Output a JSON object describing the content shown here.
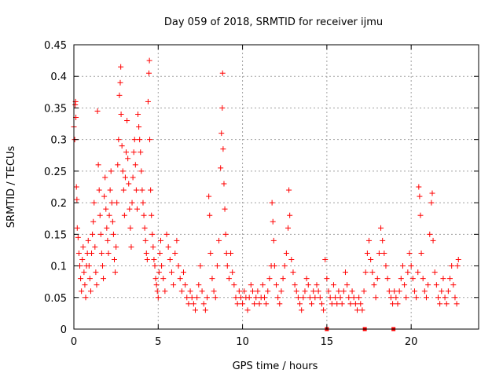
{
  "chart_data": {
    "type": "scatter",
    "title": "Day 059 of 2018, SRMTID for receiver ijmu",
    "xlabel": "GPS time / hours",
    "ylabel": "SRMTID / TECUs",
    "xlim": [
      0,
      24
    ],
    "ylim": [
      0,
      0.45
    ],
    "x_ticks": [
      0,
      5,
      10,
      15,
      20
    ],
    "y_ticks": [
      0,
      0.05,
      0.1,
      0.15,
      0.2,
      0.25,
      0.3,
      0.35,
      0.4,
      0.45
    ],
    "grid": true,
    "marker": "+",
    "series_color": "#ff0000",
    "points": [
      [
        0.0,
        0.32
      ],
      [
        0.05,
        0.3
      ],
      [
        0.08,
        0.355
      ],
      [
        0.1,
        0.36
      ],
      [
        0.12,
        0.335
      ],
      [
        0.15,
        0.225
      ],
      [
        0.18,
        0.205
      ],
      [
        0.2,
        0.16
      ],
      [
        0.25,
        0.145
      ],
      [
        0.3,
        0.12
      ],
      [
        0.35,
        0.1
      ],
      [
        0.4,
        0.08
      ],
      [
        0.45,
        0.06
      ],
      [
        0.5,
        0.11
      ],
      [
        0.55,
        0.13
      ],
      [
        0.6,
        0.09
      ],
      [
        0.65,
        0.07
      ],
      [
        0.7,
        0.05
      ],
      [
        0.75,
        0.1
      ],
      [
        0.8,
        0.12
      ],
      [
        0.85,
        0.14
      ],
      [
        0.9,
        0.1
      ],
      [
        0.95,
        0.08
      ],
      [
        1.0,
        0.06
      ],
      [
        1.05,
        0.12
      ],
      [
        1.1,
        0.15
      ],
      [
        1.15,
        0.17
      ],
      [
        1.2,
        0.2
      ],
      [
        1.25,
        0.13
      ],
      [
        1.3,
        0.09
      ],
      [
        1.35,
        0.07
      ],
      [
        1.4,
        0.345
      ],
      [
        1.45,
        0.26
      ],
      [
        1.5,
        0.22
      ],
      [
        1.55,
        0.18
      ],
      [
        1.6,
        0.15
      ],
      [
        1.65,
        0.12
      ],
      [
        1.7,
        0.1
      ],
      [
        1.75,
        0.08
      ],
      [
        1.8,
        0.21
      ],
      [
        1.85,
        0.24
      ],
      [
        1.9,
        0.19
      ],
      [
        1.95,
        0.16
      ],
      [
        2.0,
        0.14
      ],
      [
        2.05,
        0.12
      ],
      [
        2.1,
        0.18
      ],
      [
        2.15,
        0.22
      ],
      [
        2.2,
        0.25
      ],
      [
        2.25,
        0.2
      ],
      [
        2.3,
        0.17
      ],
      [
        2.35,
        0.15
      ],
      [
        2.4,
        0.11
      ],
      [
        2.45,
        0.09
      ],
      [
        2.5,
        0.13
      ],
      [
        2.55,
        0.2
      ],
      [
        2.6,
        0.26
      ],
      [
        2.65,
        0.3
      ],
      [
        2.7,
        0.37
      ],
      [
        2.75,
        0.39
      ],
      [
        2.78,
        0.415
      ],
      [
        2.8,
        0.34
      ],
      [
        2.85,
        0.29
      ],
      [
        2.9,
        0.25
      ],
      [
        2.95,
        0.22
      ],
      [
        3.0,
        0.18
      ],
      [
        3.05,
        0.24
      ],
      [
        3.1,
        0.28
      ],
      [
        3.15,
        0.33
      ],
      [
        3.2,
        0.27
      ],
      [
        3.25,
        0.23
      ],
      [
        3.3,
        0.19
      ],
      [
        3.35,
        0.16
      ],
      [
        3.4,
        0.13
      ],
      [
        3.45,
        0.2
      ],
      [
        3.5,
        0.24
      ],
      [
        3.55,
        0.28
      ],
      [
        3.6,
        0.3
      ],
      [
        3.65,
        0.26
      ],
      [
        3.7,
        0.22
      ],
      [
        3.75,
        0.19
      ],
      [
        3.8,
        0.34
      ],
      [
        3.85,
        0.32
      ],
      [
        3.9,
        0.3
      ],
      [
        3.95,
        0.28
      ],
      [
        4.0,
        0.25
      ],
      [
        4.05,
        0.22
      ],
      [
        4.1,
        0.2
      ],
      [
        4.15,
        0.18
      ],
      [
        4.2,
        0.16
      ],
      [
        4.25,
        0.14
      ],
      [
        4.3,
        0.12
      ],
      [
        4.35,
        0.11
      ],
      [
        4.4,
        0.36
      ],
      [
        4.45,
        0.405
      ],
      [
        4.48,
        0.425
      ],
      [
        4.5,
        0.3
      ],
      [
        4.55,
        0.22
      ],
      [
        4.6,
        0.18
      ],
      [
        4.65,
        0.15
      ],
      [
        4.7,
        0.13
      ],
      [
        4.75,
        0.11
      ],
      [
        4.8,
        0.1
      ],
      [
        4.85,
        0.08
      ],
      [
        4.9,
        0.07
      ],
      [
        4.95,
        0.06
      ],
      [
        5.0,
        0.05
      ],
      [
        5.05,
        0.09
      ],
      [
        5.1,
        0.12
      ],
      [
        5.15,
        0.14
      ],
      [
        5.2,
        0.1
      ],
      [
        5.3,
        0.08
      ],
      [
        5.4,
        0.06
      ],
      [
        5.5,
        0.15
      ],
      [
        5.6,
        0.13
      ],
      [
        5.7,
        0.11
      ],
      [
        5.8,
        0.09
      ],
      [
        5.9,
        0.07
      ],
      [
        6.0,
        0.12
      ],
      [
        6.1,
        0.14
      ],
      [
        6.2,
        0.1
      ],
      [
        6.3,
        0.08
      ],
      [
        6.4,
        0.06
      ],
      [
        6.5,
        0.09
      ],
      [
        6.6,
        0.07
      ],
      [
        6.7,
        0.05
      ],
      [
        6.8,
        0.04
      ],
      [
        6.9,
        0.06
      ],
      [
        7.0,
        0.05
      ],
      [
        7.1,
        0.04
      ],
      [
        7.2,
        0.03
      ],
      [
        7.3,
        0.05
      ],
      [
        7.4,
        0.07
      ],
      [
        7.5,
        0.1
      ],
      [
        7.6,
        0.06
      ],
      [
        7.7,
        0.04
      ],
      [
        7.8,
        0.03
      ],
      [
        7.9,
        0.05
      ],
      [
        8.0,
        0.21
      ],
      [
        8.05,
        0.18
      ],
      [
        8.1,
        0.12
      ],
      [
        8.2,
        0.08
      ],
      [
        8.3,
        0.06
      ],
      [
        8.4,
        0.05
      ],
      [
        8.5,
        0.1
      ],
      [
        8.6,
        0.14
      ],
      [
        8.7,
        0.255
      ],
      [
        8.75,
        0.31
      ],
      [
        8.8,
        0.35
      ],
      [
        8.82,
        0.405
      ],
      [
        8.85,
        0.285
      ],
      [
        8.9,
        0.23
      ],
      [
        8.95,
        0.19
      ],
      [
        9.0,
        0.15
      ],
      [
        9.05,
        0.12
      ],
      [
        9.1,
        0.1
      ],
      [
        9.2,
        0.08
      ],
      [
        9.3,
        0.12
      ],
      [
        9.4,
        0.09
      ],
      [
        9.5,
        0.07
      ],
      [
        9.6,
        0.05
      ],
      [
        9.7,
        0.04
      ],
      [
        9.8,
        0.06
      ],
      [
        9.9,
        0.05
      ],
      [
        10.0,
        0.04
      ],
      [
        10.1,
        0.06
      ],
      [
        10.2,
        0.05
      ],
      [
        10.3,
        0.03
      ],
      [
        10.4,
        0.05
      ],
      [
        10.5,
        0.07
      ],
      [
        10.6,
        0.06
      ],
      [
        10.7,
        0.04
      ],
      [
        10.8,
        0.05
      ],
      [
        10.9,
        0.06
      ],
      [
        11.0,
        0.04
      ],
      [
        11.1,
        0.05
      ],
      [
        11.2,
        0.07
      ],
      [
        11.3,
        0.05
      ],
      [
        11.4,
        0.04
      ],
      [
        11.5,
        0.06
      ],
      [
        11.6,
        0.08
      ],
      [
        11.7,
        0.1
      ],
      [
        11.75,
        0.2
      ],
      [
        11.8,
        0.17
      ],
      [
        11.85,
        0.14
      ],
      [
        11.9,
        0.1
      ],
      [
        12.0,
        0.07
      ],
      [
        12.1,
        0.05
      ],
      [
        12.2,
        0.04
      ],
      [
        12.3,
        0.06
      ],
      [
        12.4,
        0.08
      ],
      [
        12.5,
        0.1
      ],
      [
        12.6,
        0.12
      ],
      [
        12.7,
        0.16
      ],
      [
        12.75,
        0.22
      ],
      [
        12.8,
        0.18
      ],
      [
        12.9,
        0.11
      ],
      [
        13.0,
        0.09
      ],
      [
        13.1,
        0.07
      ],
      [
        13.2,
        0.06
      ],
      [
        13.3,
        0.05
      ],
      [
        13.4,
        0.04
      ],
      [
        13.5,
        0.03
      ],
      [
        13.6,
        0.05
      ],
      [
        13.7,
        0.06
      ],
      [
        13.8,
        0.08
      ],
      [
        13.9,
        0.07
      ],
      [
        14.0,
        0.05
      ],
      [
        14.1,
        0.04
      ],
      [
        14.2,
        0.06
      ],
      [
        14.3,
        0.05
      ],
      [
        14.4,
        0.07
      ],
      [
        14.5,
        0.06
      ],
      [
        14.6,
        0.05
      ],
      [
        14.7,
        0.04
      ],
      [
        14.8,
        0.03
      ],
      [
        14.9,
        0.11
      ],
      [
        15.0,
        0.08
      ],
      [
        15.1,
        0.06
      ],
      [
        15.2,
        0.05
      ],
      [
        15.3,
        0.04
      ],
      [
        15.4,
        0.07
      ],
      [
        15.5,
        0.05
      ],
      [
        15.6,
        0.04
      ],
      [
        15.7,
        0.06
      ],
      [
        15.8,
        0.05
      ],
      [
        15.9,
        0.04
      ],
      [
        16.0,
        0.06
      ],
      [
        16.1,
        0.09
      ],
      [
        16.2,
        0.07
      ],
      [
        16.3,
        0.05
      ],
      [
        16.4,
        0.04
      ],
      [
        16.5,
        0.06
      ],
      [
        16.6,
        0.05
      ],
      [
        16.7,
        0.04
      ],
      [
        16.8,
        0.03
      ],
      [
        16.9,
        0.05
      ],
      [
        17.0,
        0.04
      ],
      [
        17.1,
        0.03
      ],
      [
        17.2,
        0.06
      ],
      [
        17.3,
        0.09
      ],
      [
        17.4,
        0.12
      ],
      [
        17.5,
        0.14
      ],
      [
        17.6,
        0.11
      ],
      [
        17.7,
        0.09
      ],
      [
        17.8,
        0.07
      ],
      [
        17.9,
        0.05
      ],
      [
        18.0,
        0.08
      ],
      [
        18.1,
        0.12
      ],
      [
        18.2,
        0.16
      ],
      [
        18.3,
        0.14
      ],
      [
        18.4,
        0.12
      ],
      [
        18.5,
        0.1
      ],
      [
        18.6,
        0.08
      ],
      [
        18.7,
        0.06
      ],
      [
        18.8,
        0.05
      ],
      [
        18.9,
        0.04
      ],
      [
        19.0,
        0.06
      ],
      [
        19.1,
        0.05
      ],
      [
        19.2,
        0.04
      ],
      [
        19.3,
        0.06
      ],
      [
        19.4,
        0.08
      ],
      [
        19.5,
        0.1
      ],
      [
        19.6,
        0.07
      ],
      [
        19.7,
        0.05
      ],
      [
        19.8,
        0.09
      ],
      [
        19.9,
        0.12
      ],
      [
        20.0,
        0.1
      ],
      [
        20.1,
        0.08
      ],
      [
        20.2,
        0.06
      ],
      [
        20.3,
        0.05
      ],
      [
        20.4,
        0.09
      ],
      [
        20.45,
        0.225
      ],
      [
        20.5,
        0.21
      ],
      [
        20.55,
        0.18
      ],
      [
        20.6,
        0.12
      ],
      [
        20.7,
        0.08
      ],
      [
        20.8,
        0.06
      ],
      [
        20.9,
        0.05
      ],
      [
        21.0,
        0.07
      ],
      [
        21.1,
        0.15
      ],
      [
        21.2,
        0.2
      ],
      [
        21.25,
        0.215
      ],
      [
        21.3,
        0.14
      ],
      [
        21.4,
        0.09
      ],
      [
        21.5,
        0.07
      ],
      [
        21.6,
        0.05
      ],
      [
        21.7,
        0.04
      ],
      [
        21.8,
        0.06
      ],
      [
        21.9,
        0.08
      ],
      [
        22.0,
        0.05
      ],
      [
        22.1,
        0.04
      ],
      [
        22.2,
        0.06
      ],
      [
        22.3,
        0.08
      ],
      [
        22.4,
        0.1
      ],
      [
        22.5,
        0.07
      ],
      [
        22.6,
        0.05
      ],
      [
        22.7,
        0.04
      ],
      [
        22.75,
        0.1
      ],
      [
        22.8,
        0.11
      ]
    ],
    "highlighted_points": [
      [
        15.0,
        0.0
      ],
      [
        17.25,
        0.0
      ],
      [
        18.95,
        0.0
      ]
    ]
  }
}
